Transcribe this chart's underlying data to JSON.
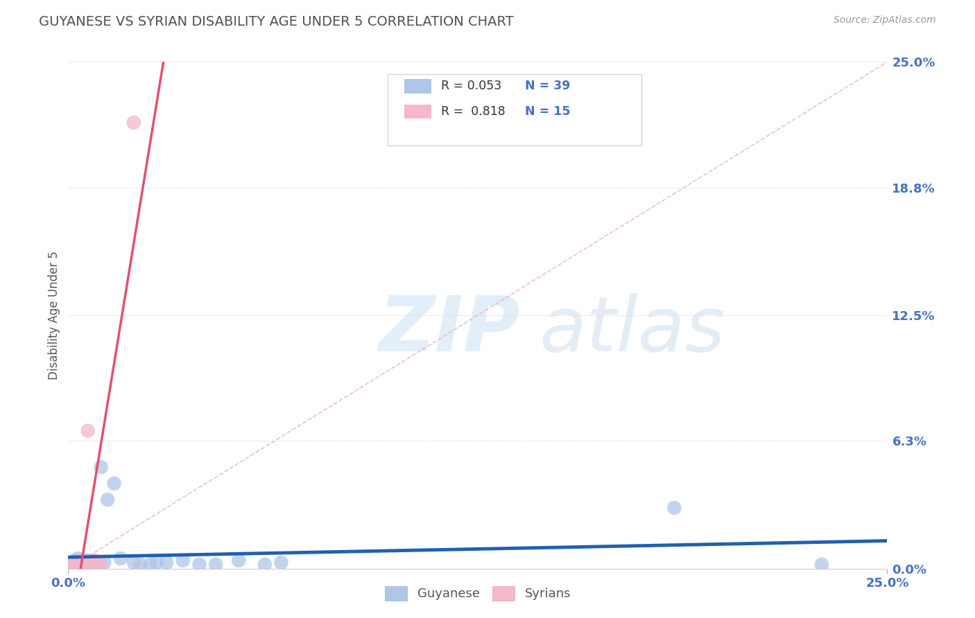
{
  "title": "GUYANESE VS SYRIAN DISABILITY AGE UNDER 5 CORRELATION CHART",
  "source": "Source: ZipAtlas.com",
  "ylabel": "Disability Age Under 5",
  "xlim": [
    0.0,
    0.25
  ],
  "ylim": [
    0.0,
    0.25
  ],
  "ytick_labels": [
    "0.0%",
    "6.3%",
    "12.5%",
    "18.8%",
    "25.0%"
  ],
  "ytick_values": [
    0.0,
    0.063,
    0.125,
    0.188,
    0.25
  ],
  "background_color": "#ffffff",
  "title_color": "#505050",
  "source_color": "#999999",
  "guyanese_color": "#aec6e8",
  "syrian_color": "#f4b8c8",
  "guyanese_line_color": "#2060b0",
  "syrian_line_color": "#e05070",
  "legend_R_guyanese": "R = 0.053",
  "legend_N_guyanese": "N = 39",
  "legend_R_syrian": "R =  0.818",
  "legend_N_syrian": "N = 15",
  "guyanese_points_x": [
    0.001,
    0.001,
    0.002,
    0.002,
    0.002,
    0.003,
    0.003,
    0.003,
    0.003,
    0.004,
    0.004,
    0.005,
    0.005,
    0.005,
    0.006,
    0.006,
    0.007,
    0.007,
    0.008,
    0.009,
    0.009,
    0.01,
    0.011,
    0.012,
    0.014,
    0.016,
    0.02,
    0.022,
    0.025,
    0.027,
    0.03,
    0.035,
    0.04,
    0.045,
    0.052,
    0.06,
    0.065,
    0.185,
    0.23
  ],
  "guyanese_points_y": [
    0.002,
    0.001,
    0.002,
    0.004,
    0.001,
    0.003,
    0.002,
    0.001,
    0.005,
    0.003,
    0.002,
    0.004,
    0.002,
    0.003,
    0.002,
    0.004,
    0.003,
    0.002,
    0.004,
    0.003,
    0.002,
    0.05,
    0.003,
    0.034,
    0.042,
    0.005,
    0.003,
    0.002,
    0.002,
    0.003,
    0.003,
    0.004,
    0.002,
    0.002,
    0.004,
    0.002,
    0.003,
    0.03,
    0.002
  ],
  "syrian_points_x": [
    0.001,
    0.002,
    0.002,
    0.003,
    0.003,
    0.004,
    0.004,
    0.005,
    0.005,
    0.006,
    0.007,
    0.008,
    0.009,
    0.01,
    0.02
  ],
  "syrian_points_y": [
    0.002,
    0.003,
    0.001,
    0.002,
    0.001,
    0.003,
    0.004,
    0.002,
    0.003,
    0.068,
    0.003,
    0.004,
    0.003,
    0.002,
    0.22
  ]
}
